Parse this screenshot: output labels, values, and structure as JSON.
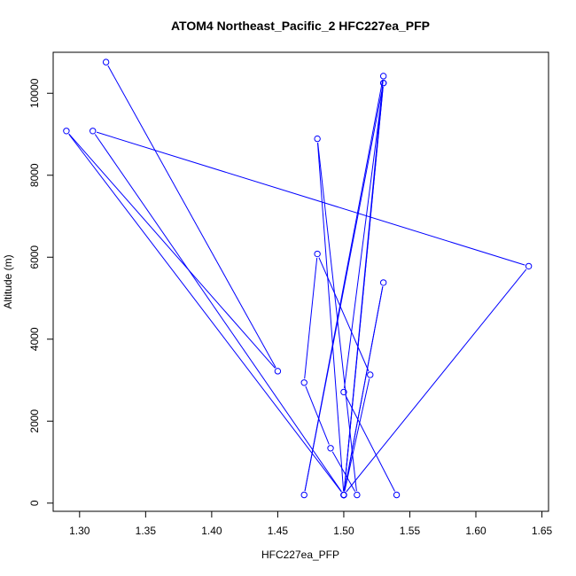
{
  "chart_data": {
    "type": "line",
    "title": "ATOM4 Northeast_Pacific_2 HFC227ea_PFP",
    "xlabel": "HFC227ea_PFP",
    "ylabel": "Altitude (m)",
    "xlim": [
      1.28,
      1.655
    ],
    "ylim": [
      -200,
      11000
    ],
    "x_ticks": [
      1.3,
      1.35,
      1.4,
      1.45,
      1.5,
      1.55,
      1.6,
      1.65
    ],
    "x_tick_labels": [
      "1.30",
      "1.35",
      "1.40",
      "1.45",
      "1.50",
      "1.55",
      "1.60",
      "1.65"
    ],
    "y_ticks": [
      0,
      2000,
      4000,
      6000,
      8000,
      10000
    ],
    "y_tick_labels": [
      "0",
      "2000",
      "4000",
      "6000",
      "8000",
      "10000"
    ],
    "grid": false,
    "marker": "open-circle",
    "series": [
      {
        "color": "#0000ff",
        "points": [
          {
            "x": 1.32,
            "y": 10760
          },
          {
            "x": 1.45,
            "y": 3220
          },
          {
            "x": 1.29,
            "y": 9080
          },
          {
            "x": 1.5,
            "y": 200
          },
          {
            "x": 1.53,
            "y": 10250
          },
          {
            "x": 1.47,
            "y": 200
          },
          {
            "x": 1.53,
            "y": 10420
          },
          {
            "x": 1.5,
            "y": 200
          },
          {
            "x": 1.64,
            "y": 5780
          },
          {
            "x": 1.31,
            "y": 9080
          },
          {
            "x": 1.5,
            "y": 200
          },
          {
            "x": 1.53,
            "y": 5380
          },
          {
            "x": 1.5,
            "y": 200
          },
          {
            "x": 1.48,
            "y": 8890
          },
          {
            "x": 1.51,
            "y": 200
          },
          {
            "x": 1.49,
            "y": 1340
          },
          {
            "x": 1.47,
            "y": 2940
          },
          {
            "x": 1.48,
            "y": 6080
          },
          {
            "x": 1.52,
            "y": 3130
          },
          {
            "x": 1.5,
            "y": 200
          },
          {
            "x": 1.53,
            "y": 10250
          },
          {
            "x": 1.5,
            "y": 2710
          },
          {
            "x": 1.54,
            "y": 200
          }
        ]
      }
    ]
  }
}
